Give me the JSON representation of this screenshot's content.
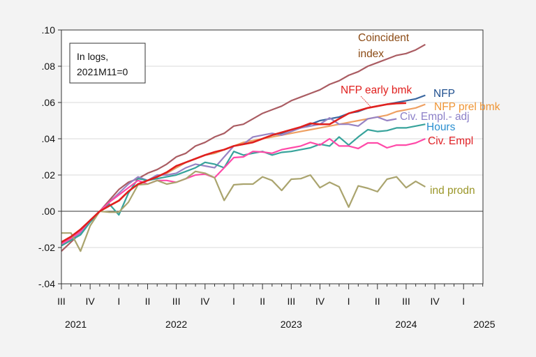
{
  "chart_data": {
    "type": "line",
    "title": "",
    "xlabel": "",
    "ylabel": "",
    "x_start": "2021-07",
    "x_end": "2025-03",
    "frequency": "monthly",
    "ylim": [
      -0.04,
      0.1
    ],
    "yticks": [
      ".10",
      ".08",
      ".06",
      ".04",
      ".02",
      ".00",
      "-.02",
      "-.04"
    ],
    "ytick_values": [
      0.1,
      0.08,
      0.06,
      0.04,
      0.02,
      0.0,
      -0.02,
      -0.04
    ],
    "grid": true,
    "quarter_labels": [
      "III",
      "IV",
      "I",
      "II",
      "III",
      "IV",
      "I",
      "II",
      "III",
      "IV",
      "I",
      "II",
      "III",
      "IV",
      "I"
    ],
    "year_labels": [
      {
        "label": "2021",
        "quarter_index": 0.5
      },
      {
        "label": "2022",
        "quarter_index": 4
      },
      {
        "label": "2023",
        "quarter_index": 8
      },
      {
        "label": "2024",
        "quarter_index": 12
      },
      {
        "label": "2025",
        "quarter_index": 14.6
      }
    ],
    "annotation": [
      "In logs,",
      "2021M11=0"
    ],
    "series": [
      {
        "name": "Coincident index",
        "label_lines": [
          "Coincident",
          "index"
        ],
        "color": "#aa5c62",
        "label_color": "#8b4a14",
        "values": [
          -0.022,
          -0.017,
          -0.012,
          -0.005,
          0,
          0.006,
          0.012,
          0.016,
          0.018,
          0.021,
          0.023,
          0.026,
          0.03,
          0.032,
          0.036,
          0.038,
          0.041,
          0.043,
          0.047,
          0.048,
          0.051,
          0.054,
          0.056,
          0.058,
          0.061,
          0.063,
          0.065,
          0.067,
          0.07,
          0.072,
          0.075,
          0.077,
          0.08,
          0.082,
          0.084,
          0.086,
          0.087,
          0.089,
          0.092
        ]
      },
      {
        "name": "NFP",
        "label_lines": [
          "NFP"
        ],
        "color": "#3a67a0",
        "label_color": "#1f4f8f",
        "values": [
          -0.018,
          -0.014,
          -0.01,
          -0.005,
          0,
          0.003,
          0.006,
          0.011,
          0.015,
          0.017,
          0.019,
          0.021,
          0.024,
          0.027,
          0.029,
          0.031,
          0.032,
          0.034,
          0.036,
          0.037,
          0.038,
          0.04,
          0.042,
          0.043,
          0.045,
          0.046,
          0.048,
          0.05,
          0.051,
          0.052,
          0.054,
          0.055,
          0.057,
          0.058,
          0.059,
          0.06,
          0.061,
          0.062,
          0.064
        ]
      },
      {
        "name": "NFP prel bmk",
        "label_lines": [
          "NFP prel bmk"
        ],
        "color": "#eea062",
        "label_color": "#ef9535",
        "values": [
          -0.018,
          -0.014,
          -0.01,
          -0.005,
          0,
          0.003,
          0.006,
          0.011,
          0.015,
          0.017,
          0.019,
          0.021,
          0.024,
          0.027,
          0.029,
          0.031,
          0.032,
          0.034,
          0.036,
          0.038,
          0.039,
          0.04,
          0.041,
          0.042,
          0.043,
          0.044,
          0.045,
          0.046,
          0.047,
          0.048,
          0.049,
          0.05,
          0.051,
          0.052,
          0.053,
          0.055,
          0.056,
          0.057,
          0.059
        ]
      },
      {
        "name": "Civ. Empl.- adj",
        "label_lines": [
          "Civ. Empl.- adj"
        ],
        "color": "#9783c4",
        "label_color": "#8c80c8",
        "values": [
          -0.019,
          -0.016,
          -0.012,
          -0.006,
          0,
          0.005,
          0.01,
          0.015,
          0.019,
          0.017,
          0.02,
          0.02,
          0.021,
          0.024,
          0.026,
          0.025,
          0.024,
          0.03,
          0.036,
          0.037,
          0.041,
          0.042,
          0.043,
          0.042,
          0.044,
          0.046,
          0.047,
          0.048,
          0.0515,
          0.048,
          0.048,
          0.047,
          0.051,
          0.052,
          0.05,
          0.051
        ]
      },
      {
        "name": "Hours",
        "label_lines": [
          "Hours"
        ],
        "color": "#37a39b",
        "label_color": "#2a8fd0",
        "values": [
          -0.019,
          -0.016,
          -0.013,
          -0.006,
          0,
          0.004,
          -0.002,
          0.01,
          0.018,
          0.017,
          0.018,
          0.019,
          0.02,
          0.022,
          0.024,
          0.027,
          0.026,
          0.024,
          0.033,
          0.031,
          0.032,
          0.033,
          0.031,
          0.0325,
          0.033,
          0.034,
          0.035,
          0.037,
          0.036,
          0.041,
          0.0365,
          0.041,
          0.045,
          0.044,
          0.0445,
          0.046,
          0.046,
          0.047,
          0.048
        ]
      },
      {
        "name": "Civ. Empl",
        "label_lines": [
          "Civ. Empl"
        ],
        "color": "#ff4aa8",
        "label_color": "#e01f24",
        "values": [
          -0.018,
          -0.015,
          -0.011,
          -0.005,
          0,
          0.005,
          0.009,
          0.013,
          0.017,
          0.015,
          0.017,
          0.017,
          0.016,
          0.018,
          0.02,
          0.0205,
          0.0185,
          0.024,
          0.0296,
          0.03,
          0.033,
          0.0327,
          0.032,
          0.034,
          0.035,
          0.036,
          0.038,
          0.0365,
          0.04,
          0.036,
          0.036,
          0.0346,
          0.0377,
          0.0377,
          0.035,
          0.0365,
          0.0365,
          0.0377,
          0.04
        ]
      },
      {
        "name": "ind prodn",
        "label_lines": [
          "ind prodn"
        ],
        "color": "#aaa46e",
        "label_color": "#9a9628",
        "values": [
          -0.012,
          -0.012,
          -0.022,
          -0.008,
          0,
          -0.0005,
          -0.0005,
          0.005,
          0.0146,
          0.015,
          0.017,
          0.015,
          0.016,
          0.018,
          0.022,
          0.021,
          0.0185,
          0.006,
          0.0146,
          0.015,
          0.015,
          0.019,
          0.017,
          0.0115,
          0.0177,
          0.018,
          0.02,
          0.013,
          0.016,
          0.0135,
          0.0023,
          0.014,
          0.0127,
          0.0108,
          0.0177,
          0.019,
          0.013,
          0.0165,
          0.0135
        ]
      },
      {
        "name": "NFP early bmk",
        "label_lines": [
          "NFP early bmk"
        ],
        "color": "#e0201e",
        "label_color": "#e0201e",
        "values": [
          -0.017,
          -0.014,
          -0.01,
          -0.005,
          0,
          0.003,
          0.0058,
          0.011,
          0.015,
          0.017,
          0.019,
          0.0215,
          0.025,
          0.027,
          0.029,
          0.031,
          0.0327,
          0.034,
          0.036,
          0.037,
          0.038,
          0.04,
          0.042,
          0.0435,
          0.045,
          0.0465,
          0.0485,
          0.048,
          0.048,
          0.051,
          0.054,
          0.0555,
          0.057,
          0.058,
          0.059,
          0.0595,
          0.0597
        ]
      }
    ]
  }
}
